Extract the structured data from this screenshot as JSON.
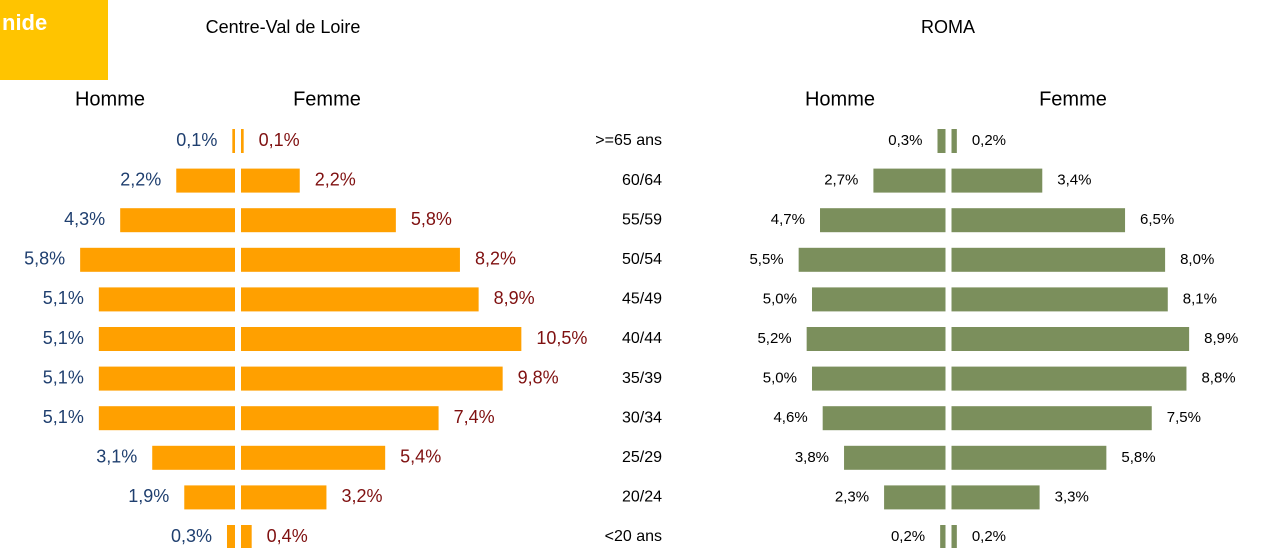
{
  "badge": "nide",
  "chart_data": [
    {
      "type": "pyramid",
      "title": "Centre-Val de Loire",
      "categories": [
        ">=65 ans",
        "60/64",
        "55/59",
        "50/54",
        "45/49",
        "40/44",
        "35/39",
        "30/34",
        "25/29",
        "20/24",
        "<20 ans"
      ],
      "color": "#ffa000",
      "series": [
        {
          "name": "Homme",
          "label_color": "#1f3f6f",
          "values": [
            0.1,
            2.2,
            4.3,
            5.8,
            5.1,
            5.1,
            5.1,
            5.1,
            3.1,
            1.9,
            0.3
          ],
          "value_labels": [
            "0,1%",
            "2,2%",
            "4,3%",
            "5,8%",
            "5,1%",
            "5,1%",
            "5,1%",
            "5,1%",
            "3,1%",
            "1,9%",
            "0,3%"
          ]
        },
        {
          "name": "Femme",
          "label_color": "#7f1010",
          "values": [
            0.1,
            2.2,
            5.8,
            8.2,
            8.9,
            10.5,
            9.8,
            7.4,
            5.4,
            3.2,
            0.4
          ],
          "value_labels": [
            "0,1%",
            "2,2%",
            "5,8%",
            "8,2%",
            "8,9%",
            "10,5%",
            "9,8%",
            "7,4%",
            "5,4%",
            "3,2%",
            "0,4%"
          ]
        }
      ]
    },
    {
      "type": "pyramid",
      "title": "ROMA",
      "color": "#7b8f5c",
      "series": [
        {
          "name": "Homme",
          "label_color": "#000000",
          "values": [
            0.3,
            2.7,
            4.7,
            5.5,
            5.0,
            5.2,
            5.0,
            4.6,
            3.8,
            2.3,
            0.2
          ],
          "value_labels": [
            "0,3%",
            "2,7%",
            "4,7%",
            "5,5%",
            "5,0%",
            "5,2%",
            "5,0%",
            "4,6%",
            "3,8%",
            "2,3%",
            "0,2%"
          ]
        },
        {
          "name": "Femme",
          "label_color": "#000000",
          "values": [
            0.2,
            3.4,
            6.5,
            8.0,
            8.1,
            8.9,
            8.8,
            7.5,
            5.8,
            3.3,
            0.2
          ],
          "value_labels": [
            "0,2%",
            "3,4%",
            "6,5%",
            "8,0%",
            "8,1%",
            "8,9%",
            "8,8%",
            "7,5%",
            "5,8%",
            "3,3%",
            "0,2%"
          ]
        }
      ]
    }
  ]
}
